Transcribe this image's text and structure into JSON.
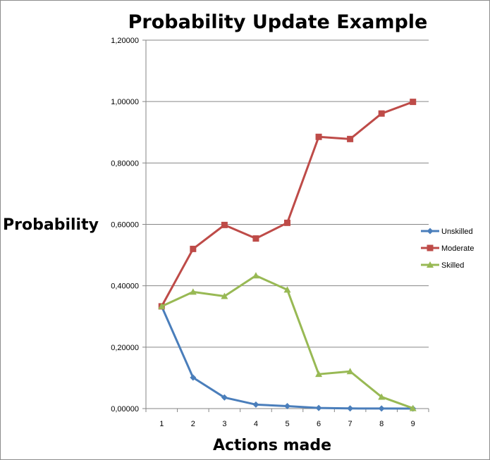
{
  "chart_data": {
    "type": "line",
    "title": "Probability Update Example",
    "xlabel": "Actions made",
    "ylabel": "Probability",
    "x": [
      1,
      2,
      3,
      4,
      5,
      6,
      7,
      8,
      9
    ],
    "ylim": [
      0,
      1.2
    ],
    "yticks": [
      "0,00000",
      "0,20000",
      "0,40000",
      "0,60000",
      "0,80000",
      "1,00000",
      "1,20000"
    ],
    "ytick_values": [
      0,
      0.2,
      0.4,
      0.6,
      0.8,
      1.0,
      1.2
    ],
    "grid": true,
    "legend": "right",
    "series": [
      {
        "name": "Unskilled",
        "color": "#4a7ebb",
        "marker": "diamond",
        "values": [
          0.333,
          0.101,
          0.036,
          0.013,
          0.008,
          0.002,
          0.0005,
          0.0002,
          0.0001
        ]
      },
      {
        "name": "Moderate",
        "color": "#be4b48",
        "marker": "square",
        "values": [
          0.333,
          0.52,
          0.598,
          0.554,
          0.605,
          0.885,
          0.878,
          0.961,
          0.999
        ]
      },
      {
        "name": "Skilled",
        "color": "#98b954",
        "marker": "triangle",
        "values": [
          0.333,
          0.38,
          0.366,
          0.433,
          0.387,
          0.112,
          0.121,
          0.038,
          0.001
        ]
      }
    ]
  }
}
